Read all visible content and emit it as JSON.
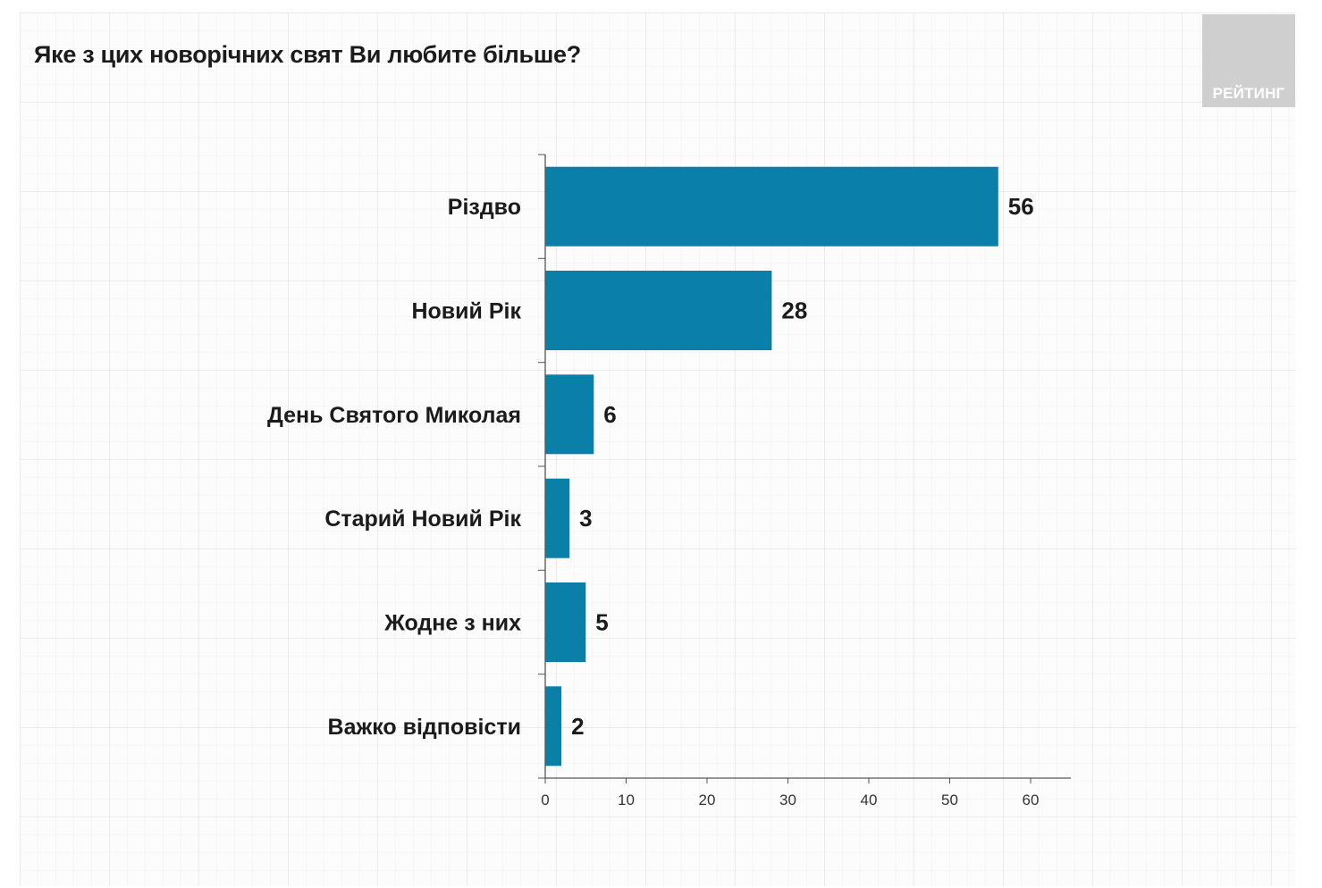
{
  "title": "Яке з цих новорічних свят Ви любите більше?",
  "logo": {
    "text": "РЕЙТИНГ"
  },
  "colors": {
    "bar": "#0a80a8",
    "axis": "#555555",
    "logo_bg": "#cfcfcf"
  },
  "chart_data": {
    "type": "bar",
    "orientation": "horizontal",
    "title": "Яке з цих новорічних свят Ви любите більше?",
    "categories": [
      "Різдво",
      "Новий Рік",
      "День Святого Миколая",
      "Старий Новий Рік",
      "Жодне з них",
      "Важко відповісти"
    ],
    "values": [
      56,
      28,
      6,
      3,
      5,
      2
    ],
    "data_labels": [
      "56",
      "28",
      "6",
      "3",
      "5",
      "2"
    ],
    "xlim": [
      0,
      65
    ],
    "x_ticks": [
      0,
      10,
      20,
      30,
      40,
      50,
      60
    ],
    "grid": false,
    "legend": "none"
  }
}
